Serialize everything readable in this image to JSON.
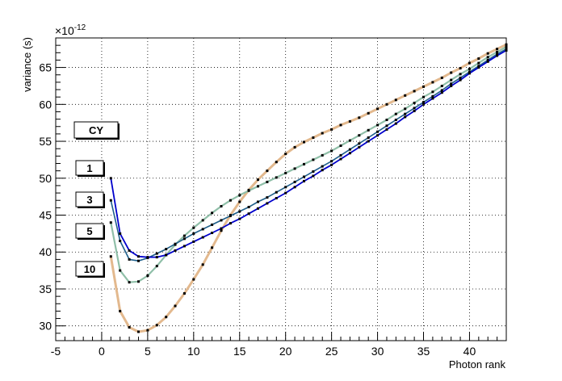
{
  "chart_data": {
    "type": "line",
    "title": "",
    "xlabel": "Photon rank",
    "ylabel": "variance (s)",
    "y_exponent_label": "×10",
    "y_exponent": "-12",
    "xlim": [
      -5,
      44
    ],
    "ylim": [
      28,
      69
    ],
    "x_ticks": [
      -5,
      0,
      5,
      10,
      15,
      20,
      25,
      30,
      35,
      40
    ],
    "y_ticks": [
      30,
      35,
      40,
      45,
      50,
      55,
      60,
      65
    ],
    "grid": true,
    "legend_label_CY": "CY",
    "series": [
      {
        "name": "1",
        "color": "#0000cc",
        "x": [
          1,
          2,
          3,
          4,
          5,
          6,
          7,
          8,
          9,
          10,
          11,
          12,
          13,
          14,
          15,
          16,
          17,
          18,
          19,
          20,
          21,
          22,
          23,
          24,
          25,
          26,
          27,
          28,
          29,
          30,
          31,
          32,
          33,
          34,
          35,
          36,
          37,
          38,
          39,
          40,
          41,
          42,
          43,
          44
        ],
        "y": [
          50.0,
          42.5,
          40.2,
          39.4,
          39.3,
          39.3,
          39.6,
          40.2,
          40.8,
          41.4,
          42.0,
          42.6,
          43.2,
          43.9,
          44.5,
          45.2,
          45.9,
          46.6,
          47.3,
          48.0,
          48.8,
          49.6,
          50.3,
          51.1,
          51.8,
          52.6,
          53.4,
          54.2,
          55.0,
          55.8,
          56.6,
          57.4,
          58.3,
          59.1,
          60.0,
          60.8,
          61.6,
          62.5,
          63.3,
          64.2,
          65.0,
          65.8,
          66.6,
          67.3
        ]
      },
      {
        "name": "3",
        "color": "#1f5f8a",
        "x": [
          1,
          2,
          3,
          4,
          5,
          6,
          7,
          8,
          9,
          10,
          11,
          12,
          13,
          14,
          15,
          16,
          17,
          18,
          19,
          20,
          21,
          22,
          23,
          24,
          25,
          26,
          27,
          28,
          29,
          30,
          31,
          32,
          33,
          34,
          35,
          36,
          37,
          38,
          39,
          40,
          41,
          42,
          43,
          44
        ],
        "y": [
          47.0,
          41.5,
          39.0,
          38.8,
          39.2,
          39.8,
          40.4,
          41.1,
          41.8,
          42.5,
          43.1,
          43.7,
          44.3,
          44.9,
          45.5,
          46.1,
          46.8,
          47.4,
          48.1,
          48.8,
          49.5,
          50.2,
          50.9,
          51.6,
          52.3,
          53.1,
          53.9,
          54.7,
          55.5,
          56.3,
          57.1,
          57.9,
          58.7,
          59.5,
          60.3,
          61.1,
          61.9,
          62.8,
          63.6,
          64.4,
          65.2,
          66.0,
          66.8,
          67.5
        ]
      },
      {
        "name": "5",
        "color": "#8fbfa8",
        "x": [
          1,
          2,
          3,
          4,
          5,
          6,
          7,
          8,
          9,
          10,
          11,
          12,
          13,
          14,
          15,
          16,
          17,
          18,
          19,
          20,
          21,
          22,
          23,
          24,
          25,
          26,
          27,
          28,
          29,
          30,
          31,
          32,
          33,
          34,
          35,
          36,
          37,
          38,
          39,
          40,
          41,
          42,
          43,
          44
        ],
        "y": [
          44.0,
          37.5,
          35.9,
          36.0,
          36.8,
          38.1,
          39.6,
          41.0,
          42.2,
          43.3,
          44.3,
          45.3,
          46.2,
          47.0,
          47.7,
          48.3,
          48.9,
          49.5,
          50.1,
          50.7,
          51.3,
          51.9,
          52.5,
          53.1,
          53.7,
          54.4,
          55.1,
          55.8,
          56.5,
          57.2,
          57.9,
          58.7,
          59.4,
          60.2,
          61.0,
          61.7,
          62.5,
          63.3,
          64.1,
          64.8,
          65.6,
          66.4,
          67.1,
          67.8
        ]
      },
      {
        "name": "10",
        "color": "#e3b98e",
        "x": [
          1,
          2,
          3,
          4,
          5,
          6,
          7,
          8,
          9,
          10,
          11,
          12,
          13,
          14,
          15,
          16,
          17,
          18,
          19,
          20,
          21,
          22,
          23,
          24,
          25,
          26,
          27,
          28,
          29,
          30,
          31,
          32,
          33,
          34,
          35,
          36,
          37,
          38,
          39,
          40,
          41,
          42,
          43,
          44
        ],
        "y": [
          39.4,
          32.0,
          29.8,
          29.2,
          29.4,
          30.1,
          31.2,
          32.7,
          34.4,
          36.3,
          38.3,
          40.6,
          42.9,
          45.0,
          46.8,
          48.4,
          49.8,
          51.0,
          52.2,
          53.3,
          54.2,
          54.9,
          55.5,
          56.1,
          56.6,
          57.2,
          57.7,
          58.2,
          58.8,
          59.4,
          60.0,
          60.6,
          61.2,
          61.8,
          62.4,
          63.0,
          63.6,
          64.3,
          64.9,
          65.6,
          66.2,
          66.9,
          67.5,
          68.1
        ]
      }
    ]
  }
}
